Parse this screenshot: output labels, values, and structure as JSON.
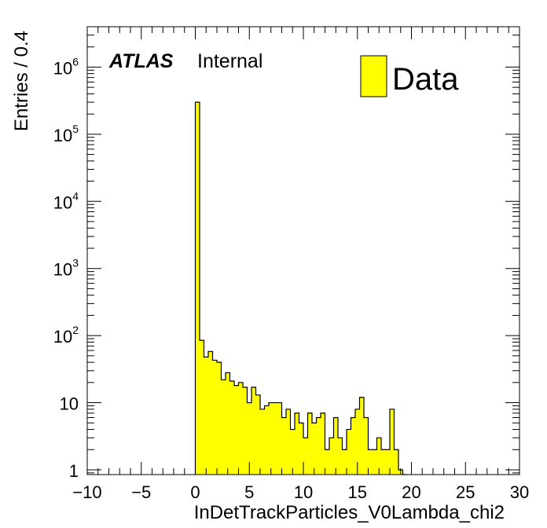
{
  "chart_data": {
    "type": "bar",
    "histogram": true,
    "log_y": true,
    "bin_width": 0.4,
    "x_bin_edges_start": 0.0,
    "values": [
      300000,
      85,
      48,
      58,
      43,
      40,
      22,
      28,
      21,
      18,
      20,
      17,
      10,
      17,
      13,
      8,
      9,
      10,
      10,
      10,
      6,
      8,
      4,
      7,
      5,
      3,
      7,
      5,
      6,
      7,
      2,
      3,
      6,
      3,
      2,
      4,
      6,
      8,
      12,
      6,
      2,
      2,
      3,
      2,
      2,
      8,
      2,
      1,
      0
    ],
    "xlim": [
      -10,
      30
    ],
    "ylim": [
      0.85,
      4000000
    ],
    "x_ticks": [
      -10,
      -5,
      0,
      5,
      10,
      15,
      20,
      25,
      30
    ],
    "x_tick_labels": [
      "−10",
      "−5",
      "0",
      "5",
      "10",
      "15",
      "20",
      "25",
      "30"
    ],
    "y_ticks": [
      1,
      10,
      100,
      1000,
      10000,
      100000,
      1000000
    ],
    "y_tick_labels": [
      {
        "base": "1",
        "exp": ""
      },
      {
        "base": "10",
        "exp": ""
      },
      {
        "base": "10",
        "exp": "2"
      },
      {
        "base": "10",
        "exp": "3"
      },
      {
        "base": "10",
        "exp": "4"
      },
      {
        "base": "10",
        "exp": "5"
      },
      {
        "base": "10",
        "exp": "6"
      }
    ],
    "xlabel": "InDetTrackParticles_V0Lambda_chi2",
    "ylabel": "Entries / 0.4",
    "legend": {
      "entries": [
        "Data"
      ],
      "placement": "top-right"
    },
    "fill_color": "#ffff00",
    "line_color": "#000000",
    "grid": false
  },
  "annotation": {
    "experiment": "ATLAS",
    "status": "Internal"
  }
}
